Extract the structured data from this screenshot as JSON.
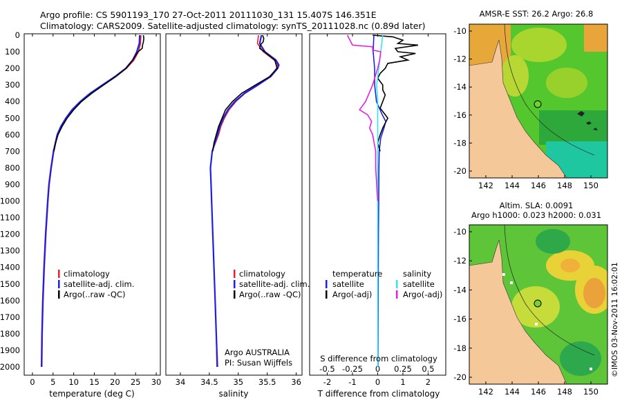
{
  "header": {
    "line1": "Argo profile: CS 5901193_170 27-Oct-2011 20111030_131 15.407S 146.351E",
    "line2": "Climatology: CARS2009. Satellite-adjusted climatology: synTS_20111028.nc (0.89d later)"
  },
  "depth_ticks": [
    "0",
    "100",
    "200",
    "300",
    "400",
    "500",
    "600",
    "700",
    "800",
    "900",
    "1000",
    "1100",
    "1200",
    "1300",
    "1400",
    "1500",
    "1600",
    "1700",
    "1800",
    "1900",
    "2000"
  ],
  "colors": {
    "climatology": "#e8212a",
    "satellite": "#1e1ee6",
    "argo": "#000000",
    "sal_satellite": "#33e6ee",
    "sal_argo": "#e61ee6",
    "land": "#f5c89a"
  },
  "legend_profile": {
    "climatology": "climatology",
    "satellite": "satellite-adj. clim.",
    "argo": "Argo(..raw -QC)"
  },
  "legend_diff": {
    "temperature_head": "temperature",
    "salinity_head": "salinity",
    "t_satellite": "satellite",
    "t_argo": "Argo(-adj)",
    "s_satellite": "satellite",
    "s_argo": "Argo(-adj)"
  },
  "credit": {
    "line1": "Argo AUSTRALIA",
    "line2": "PI: Susan Wijffels"
  },
  "diff_top_label": "S difference from climatology",
  "maps": {
    "top_title": "AMSR-E SST: 26.2 Argo: 26.8",
    "bottom_title_1": "Altim. SLA: 0.0091",
    "bottom_title_2": "Argo h1000: 0.023 h2000: 0.031",
    "lat_ticks": [
      "-10",
      "-12",
      "-14",
      "-16",
      "-18",
      "-20"
    ],
    "lon_ticks": [
      "142",
      "144",
      "146",
      "148",
      "150"
    ],
    "float_position": {
      "lon": 146.351,
      "lat": -15.407
    }
  },
  "side_stamp": "©IMOS 03-Nov-2011 16:02:01",
  "chart_data": [
    {
      "type": "line",
      "name": "temperature",
      "xlabel": "temperature (deg C)",
      "ylabel": "",
      "xlim": [
        -2,
        31
      ],
      "ylim": [
        2050,
        0
      ],
      "x_ticks": [
        "0",
        "5",
        "10",
        "15",
        "20",
        "25",
        "30"
      ],
      "series": [
        {
          "name": "climatology",
          "depth": [
            0,
            50,
            100,
            150,
            200,
            250,
            300,
            350,
            400,
            450,
            500,
            550,
            600,
            700,
            800,
            900,
            1000,
            1200,
            1400,
            1600,
            1800,
            2000
          ],
          "values": [
            26.3,
            26.2,
            25.7,
            24.6,
            22.8,
            20.2,
            17.2,
            14.2,
            11.8,
            9.8,
            8.3,
            7.0,
            6.1,
            5.2,
            4.6,
            4.1,
            3.8,
            3.3,
            2.9,
            2.6,
            2.4,
            2.3
          ]
        },
        {
          "name": "satellite-adj. clim.",
          "depth": [
            0,
            50,
            100,
            150,
            200,
            250,
            300,
            350,
            400,
            450,
            500,
            550,
            600,
            700,
            800,
            900,
            1000,
            1200,
            1400,
            1600,
            1800,
            2000
          ],
          "values": [
            26.0,
            25.9,
            25.3,
            24.3,
            22.6,
            20.0,
            17.0,
            14.0,
            11.6,
            9.6,
            8.1,
            6.9,
            6.0,
            5.1,
            4.5,
            4.0,
            3.7,
            3.2,
            2.8,
            2.5,
            2.3,
            2.2
          ]
        },
        {
          "name": "Argo(..raw -QC)",
          "depth": [
            0,
            20,
            40,
            60,
            80,
            100,
            150,
            200,
            250,
            300,
            350,
            400,
            450,
            500,
            550,
            600,
            650,
            700
          ],
          "values": [
            26.9,
            27.0,
            26.9,
            26.7,
            26.6,
            25.6,
            24.3,
            22.7,
            20.2,
            17.3,
            14.4,
            11.9,
            10.0,
            8.4,
            7.2,
            6.2,
            5.6,
            5.2
          ]
        }
      ]
    },
    {
      "type": "line",
      "name": "salinity",
      "xlabel": "salinity",
      "ylabel": "",
      "xlim": [
        33.75,
        36.1
      ],
      "ylim": [
        2050,
        0
      ],
      "x_ticks": [
        "34",
        "34.5",
        "35",
        "35.5",
        "36"
      ],
      "series": [
        {
          "name": "climatology",
          "depth": [
            0,
            50,
            100,
            150,
            180,
            200,
            250,
            300,
            350,
            400,
            450,
            500,
            550,
            600,
            700,
            800,
            900,
            1000,
            1200,
            1400,
            1600,
            1800,
            2000
          ],
          "values": [
            35.35,
            35.33,
            35.43,
            35.62,
            35.68,
            35.66,
            35.55,
            35.35,
            35.12,
            34.96,
            34.84,
            34.76,
            34.7,
            34.66,
            34.55,
            34.52,
            34.53,
            34.54,
            34.56,
            34.58,
            34.6,
            34.62,
            34.63
          ]
        },
        {
          "name": "satellite-adj. clim.",
          "depth": [
            0,
            50,
            100,
            150,
            180,
            200,
            250,
            300,
            350,
            400,
            450,
            500,
            550,
            600,
            700,
            800,
            900,
            1000,
            1200,
            1400,
            1600,
            1800,
            2000
          ],
          "values": [
            35.4,
            35.37,
            35.46,
            35.65,
            35.7,
            35.68,
            35.56,
            35.34,
            35.11,
            34.94,
            34.82,
            34.74,
            34.68,
            34.64,
            34.55,
            34.52,
            34.53,
            34.54,
            34.56,
            34.58,
            34.6,
            34.62,
            34.64
          ]
        },
        {
          "name": "Argo(..raw -QC)",
          "depth": [
            0,
            20,
            40,
            60,
            80,
            100,
            150,
            200,
            250,
            300,
            350,
            400,
            450,
            500,
            550,
            600,
            650,
            700
          ],
          "values": [
            35.42,
            35.44,
            35.43,
            35.38,
            35.37,
            35.45,
            35.63,
            35.67,
            35.54,
            35.3,
            35.06,
            34.9,
            34.78,
            34.72,
            34.66,
            34.62,
            34.58,
            34.56
          ]
        }
      ]
    },
    {
      "type": "line",
      "name": "differences",
      "xlabel": "T difference from climatology",
      "ylabel": "",
      "xlim": [
        -2.7,
        2.7
      ],
      "ylim": [
        2050,
        0
      ],
      "x_ticks": [
        "-2",
        "-1",
        "0",
        "1",
        "2"
      ],
      "top_ticks": [
        "-0.5",
        "-0.25",
        "0",
        "0.25",
        "0.5"
      ],
      "series": [
        {
          "name": "temperature satellite",
          "depth": [
            0,
            100,
            200,
            300,
            400,
            480,
            520,
            560,
            620,
            700,
            800,
            1000,
            1200,
            1600,
            2000
          ],
          "values": [
            -0.15,
            -0.18,
            -0.12,
            -0.12,
            -0.05,
            0.18,
            0.32,
            0.25,
            0.12,
            0.06,
            0.05,
            0.04,
            0.03,
            0.02,
            0.01
          ]
        },
        {
          "name": "temperature Argo(-adj)",
          "depth": [
            0,
            10,
            30,
            50,
            60,
            80,
            100,
            110,
            130,
            150,
            170,
            200,
            230,
            260,
            300,
            330,
            360,
            400,
            440,
            480,
            500,
            530,
            560,
            600,
            650,
            700
          ],
          "values": [
            -0.2,
            0.6,
            1.0,
            0.8,
            1.6,
            0.7,
            0.8,
            1.5,
            0.9,
            1.2,
            0.4,
            0.3,
            0.1,
            0.0,
            0.2,
            0.2,
            0.3,
            0.2,
            0.1,
            0.3,
            0.4,
            0.3,
            0.2,
            0.1,
            0.0,
            0.1
          ]
        },
        {
          "name": "salinity satellite",
          "depth": [
            0,
            100,
            200,
            300,
            400,
            600,
            800,
            1000,
            1400,
            2000
          ],
          "values": [
            0.05,
            0.03,
            0.01,
            -0.01,
            0.0,
            0.0,
            0.0,
            0.0,
            0.0,
            0.0
          ]
        },
        {
          "name": "salinity Argo(-adj)",
          "depth": [
            0,
            60,
            70,
            90,
            100,
            150,
            200,
            300,
            400,
            450,
            480,
            520,
            560,
            600,
            700,
            800,
            900,
            1000
          ],
          "values": [
            -0.3,
            -0.25,
            -0.05,
            -0.05,
            0.03,
            0.02,
            0.0,
            -0.05,
            -0.12,
            -0.18,
            -0.1,
            -0.06,
            -0.08,
            -0.05,
            -0.02,
            -0.02,
            -0.01,
            0.0
          ]
        }
      ]
    }
  ]
}
